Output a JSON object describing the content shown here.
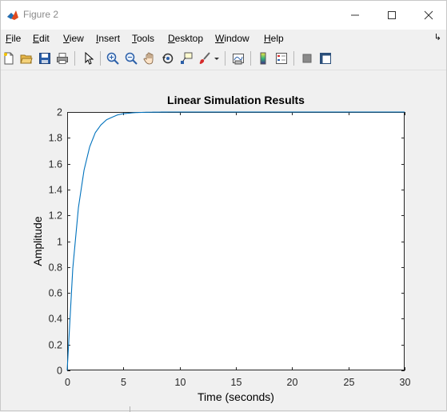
{
  "window": {
    "title": "Figure 2",
    "accent": "#0072bd"
  },
  "menubar": {
    "items": [
      {
        "mn": "F",
        "rest": "ile"
      },
      {
        "mn": "E",
        "rest": "dit"
      },
      {
        "mn": "V",
        "rest": "iew"
      },
      {
        "mn": "I",
        "rest": "nsert"
      },
      {
        "mn": "T",
        "rest": "ools"
      },
      {
        "mn": "D",
        "rest": "esktop"
      },
      {
        "mn": "W",
        "rest": "indow"
      },
      {
        "mn": "H",
        "rest": "elp"
      }
    ]
  },
  "toolbar": {
    "icons": [
      "new-figure-icon",
      "open-file-icon",
      "save-icon",
      "print-icon",
      "edit-plot-icon",
      "zoom-in-icon",
      "zoom-out-icon",
      "pan-icon",
      "rotate-3d-icon",
      "data-cursor-icon",
      "brush-icon",
      "link-plot-icon",
      "colorbar-icon",
      "legend-icon",
      "hide-plot-tools-icon",
      "show-plot-tools-icon"
    ]
  },
  "chart_data": {
    "type": "line",
    "title": "Linear Simulation Results",
    "xlabel": "Time (seconds)",
    "ylabel": "Amplitude",
    "xlim": [
      0,
      30
    ],
    "ylim": [
      0,
      2
    ],
    "xticks": [
      "0",
      "5",
      "10",
      "15",
      "20",
      "25",
      "30"
    ],
    "yticks": [
      "0",
      "0.2",
      "0.4",
      "0.6",
      "0.8",
      "1",
      "1.2",
      "1.4",
      "1.6",
      "1.8",
      "2"
    ],
    "grid": false,
    "line_color": "#0072bd",
    "series": [
      {
        "x": [
          0,
          0.5,
          1,
          1.5,
          2,
          2.5,
          3,
          3.5,
          4,
          4.5,
          5,
          6,
          7,
          8,
          9,
          10,
          12,
          14,
          16,
          18,
          20,
          25,
          30
        ],
        "y": [
          0,
          0.79,
          1.26,
          1.55,
          1.73,
          1.84,
          1.9,
          1.94,
          1.96,
          1.978,
          1.987,
          1.995,
          1.998,
          1.999,
          2.0,
          2.0,
          2.0,
          2.0,
          2.0,
          2.0,
          2.0,
          2.0,
          2.0
        ]
      }
    ]
  }
}
